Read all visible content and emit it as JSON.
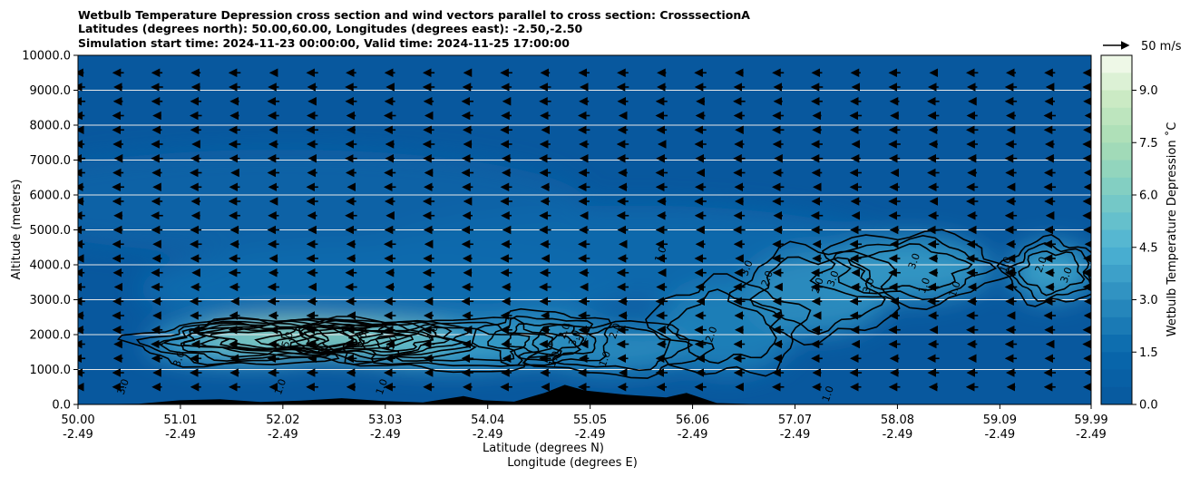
{
  "chart_data": {
    "type": "heatmap",
    "title_lines": [
      "Wetbulb Temperature Depression cross section and wind vectors parallel to cross section: CrosssectionA",
      "Latitudes (degrees north): 50.00,60.00, Longitudes (degrees east): -2.50,-2.50",
      "Simulation start time: 2024-11-23 00:00:00, Valid time: 2024-11-25 17:00:00"
    ],
    "ylabel": "Altitude (meters)",
    "xlabel_lines": [
      "Latitude (degrees N)",
      "Longitude (degrees E)"
    ],
    "ylim": [
      0,
      10000
    ],
    "y_ticks": [
      0,
      1000,
      2000,
      3000,
      4000,
      5000,
      6000,
      7000,
      8000,
      9000,
      10000
    ],
    "y_tick_labels": [
      "0.0",
      "1000.0",
      "2000.0",
      "3000.0",
      "4000.0",
      "5000.0",
      "6000.0",
      "7000.0",
      "8000.0",
      "9000.0",
      "10000.0"
    ],
    "xlim": [
      50.0,
      59.99
    ],
    "x_ticks": [
      50.0,
      51.01,
      52.02,
      53.03,
      54.04,
      55.05,
      56.06,
      57.07,
      58.08,
      59.09,
      59.99
    ],
    "x_tick_labels_lat": [
      "50.00",
      "51.01",
      "52.02",
      "53.03",
      "54.04",
      "55.05",
      "56.06",
      "57.07",
      "58.08",
      "59.09",
      "59.99"
    ],
    "x_tick_labels_lon": [
      "-2.49",
      "-2.49",
      "-2.49",
      "-2.49",
      "-2.49",
      "-2.49",
      "-2.49",
      "-2.49",
      "-2.49",
      "-2.49",
      "-2.49"
    ],
    "grid": "horizontal",
    "colorbar": {
      "label": "Wetbulb Temperature Depression ˚C",
      "range": [
        0,
        10
      ],
      "ticks": [
        0.0,
        1.5,
        3.0,
        4.5,
        6.0,
        7.5,
        9.0
      ],
      "tick_labels": [
        "0.0",
        "1.5",
        "3.0",
        "4.5",
        "6.0",
        "7.5",
        "9.0"
      ],
      "colormap": "GnBu",
      "levels": 20
    },
    "wind_reference": {
      "value": 50,
      "unit": "m/s",
      "label": "50 m/s",
      "direction": "right"
    },
    "wind_direction_dominant": "left",
    "contour_levels": [
      1.0,
      2.0,
      3.0,
      4.0,
      5.0
    ],
    "contour_labels": [
      {
        "text": "3.0",
        "lat": 50.45,
        "alt": 500
      },
      {
        "text": "3.0",
        "lat": 51.0,
        "alt": 1300
      },
      {
        "text": "5.0",
        "lat": 52.07,
        "alt": 1850
      },
      {
        "text": "1.0",
        "lat": 52.0,
        "alt": 500
      },
      {
        "text": "5.0",
        "lat": 52.8,
        "alt": 1850
      },
      {
        "text": "5.0",
        "lat": 53.1,
        "alt": 1750
      },
      {
        "text": "4.0",
        "lat": 53.5,
        "alt": 2050
      },
      {
        "text": "1.0",
        "lat": 53.0,
        "alt": 500
      },
      {
        "text": "1.0",
        "lat": 54.7,
        "alt": 1300
      },
      {
        "text": "2.0",
        "lat": 54.8,
        "alt": 2100
      },
      {
        "text": "3.0",
        "lat": 54.9,
        "alt": 1900
      },
      {
        "text": "2.0",
        "lat": 55.0,
        "alt": 2000
      },
      {
        "text": "2.0",
        "lat": 55.3,
        "alt": 2100
      },
      {
        "text": "1.0",
        "lat": 55.2,
        "alt": 1300
      },
      {
        "text": "1.0",
        "lat": 55.75,
        "alt": 4300
      },
      {
        "text": "2.0",
        "lat": 56.25,
        "alt": 2000
      },
      {
        "text": "3.0",
        "lat": 56.6,
        "alt": 3900
      },
      {
        "text": "2.0",
        "lat": 56.8,
        "alt": 3600
      },
      {
        "text": "2.0",
        "lat": 57.3,
        "alt": 3400
      },
      {
        "text": "3.0",
        "lat": 57.45,
        "alt": 3600
      },
      {
        "text": "3.0",
        "lat": 57.8,
        "alt": 3400
      },
      {
        "text": "3.0",
        "lat": 58.25,
        "alt": 4100
      },
      {
        "text": "1.0",
        "lat": 58.35,
        "alt": 3400
      },
      {
        "text": "1.0",
        "lat": 58.65,
        "alt": 3300
      },
      {
        "text": "1.0",
        "lat": 59.15,
        "alt": 4000
      },
      {
        "text": "2.0",
        "lat": 59.5,
        "alt": 4000
      },
      {
        "text": "3.0",
        "lat": 59.75,
        "alt": 3700
      },
      {
        "text": "1.0",
        "lat": 57.4,
        "alt": 300
      }
    ],
    "color_field_blobs": [
      {
        "lat": 52.1,
        "alt": 1950,
        "value": 6.4,
        "lat_span": 0.9,
        "alt_span": 420
      },
      {
        "lat": 52.9,
        "alt": 1850,
        "value": 5.5,
        "lat_span": 0.8,
        "alt_span": 500
      },
      {
        "lat": 51.6,
        "alt": 1750,
        "value": 4.2,
        "lat_span": 0.9,
        "alt_span": 550
      },
      {
        "lat": 53.7,
        "alt": 1700,
        "value": 3.6,
        "lat_span": 1.0,
        "alt_span": 650
      },
      {
        "lat": 54.6,
        "alt": 1900,
        "value": 3.0,
        "lat_span": 0.6,
        "alt_span": 700
      },
      {
        "lat": 55.3,
        "alt": 1600,
        "value": 2.8,
        "lat_span": 0.8,
        "alt_span": 700
      },
      {
        "lat": 56.4,
        "alt": 2200,
        "value": 2.4,
        "lat_span": 0.7,
        "alt_span": 1300
      },
      {
        "lat": 57.3,
        "alt": 3200,
        "value": 2.9,
        "lat_span": 0.7,
        "alt_span": 1200
      },
      {
        "lat": 58.2,
        "alt": 3900,
        "value": 3.3,
        "lat_span": 0.8,
        "alt_span": 900
      },
      {
        "lat": 59.6,
        "alt": 3800,
        "value": 3.6,
        "lat_span": 0.4,
        "alt_span": 800
      },
      {
        "lat": 53.0,
        "alt": 3300,
        "value": 1.6,
        "lat_span": 2.4,
        "alt_span": 1300
      },
      {
        "lat": 55.5,
        "alt": 4300,
        "value": 1.4,
        "lat_span": 2.6,
        "alt_span": 1400
      },
      {
        "lat": 52.0,
        "alt": 5800,
        "value": 0.9,
        "lat_span": 3.0,
        "alt_span": 1500
      }
    ],
    "terrain": [
      {
        "lat": 50.0,
        "alt": 0
      },
      {
        "lat": 50.6,
        "alt": 20
      },
      {
        "lat": 51.0,
        "alt": 120
      },
      {
        "lat": 51.4,
        "alt": 150
      },
      {
        "lat": 51.8,
        "alt": 70
      },
      {
        "lat": 52.2,
        "alt": 110
      },
      {
        "lat": 52.6,
        "alt": 180
      },
      {
        "lat": 53.0,
        "alt": 100
      },
      {
        "lat": 53.4,
        "alt": 60
      },
      {
        "lat": 53.8,
        "alt": 240
      },
      {
        "lat": 54.0,
        "alt": 120
      },
      {
        "lat": 54.3,
        "alt": 80
      },
      {
        "lat": 54.6,
        "alt": 330
      },
      {
        "lat": 54.8,
        "alt": 560
      },
      {
        "lat": 55.0,
        "alt": 400
      },
      {
        "lat": 55.4,
        "alt": 280
      },
      {
        "lat": 55.8,
        "alt": 200
      },
      {
        "lat": 56.0,
        "alt": 330
      },
      {
        "lat": 56.3,
        "alt": 40
      },
      {
        "lat": 56.8,
        "alt": 0
      },
      {
        "lat": 59.99,
        "alt": 0
      }
    ]
  }
}
